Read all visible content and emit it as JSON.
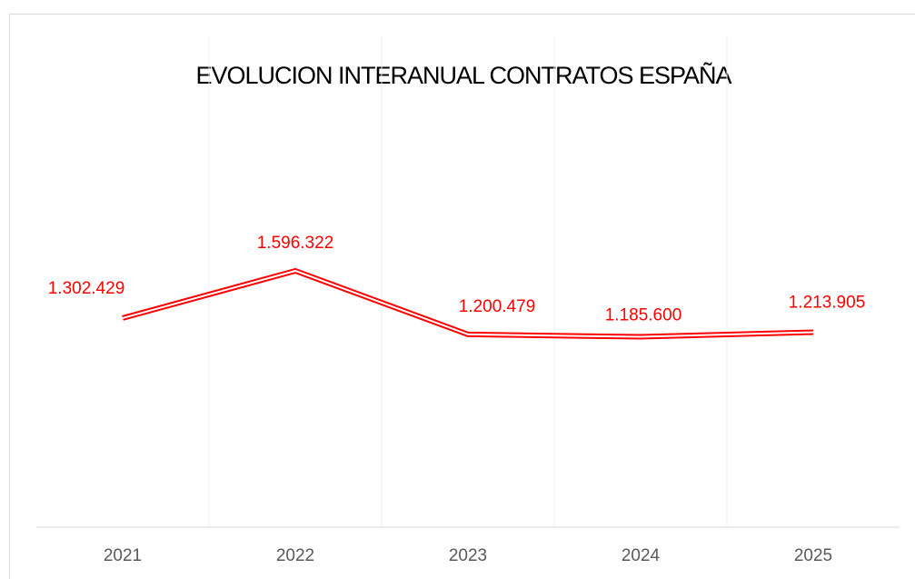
{
  "chart_data": {
    "type": "line",
    "title": "EVOLUCION INTERANUAL CONTRATOS ESPAÑA",
    "categories": [
      "2021",
      "2022",
      "2023",
      "2024",
      "2025"
    ],
    "series": [
      {
        "color": "#ff0000",
        "values": [
          1302429,
          1596322,
          1200479,
          1185600,
          1213905
        ],
        "value_labels": [
          "1.302.429",
          "1.596.322",
          "1.200.479",
          "1.185.600",
          "1.213.905"
        ]
      }
    ],
    "ylim": [
      0,
      3000000
    ]
  }
}
